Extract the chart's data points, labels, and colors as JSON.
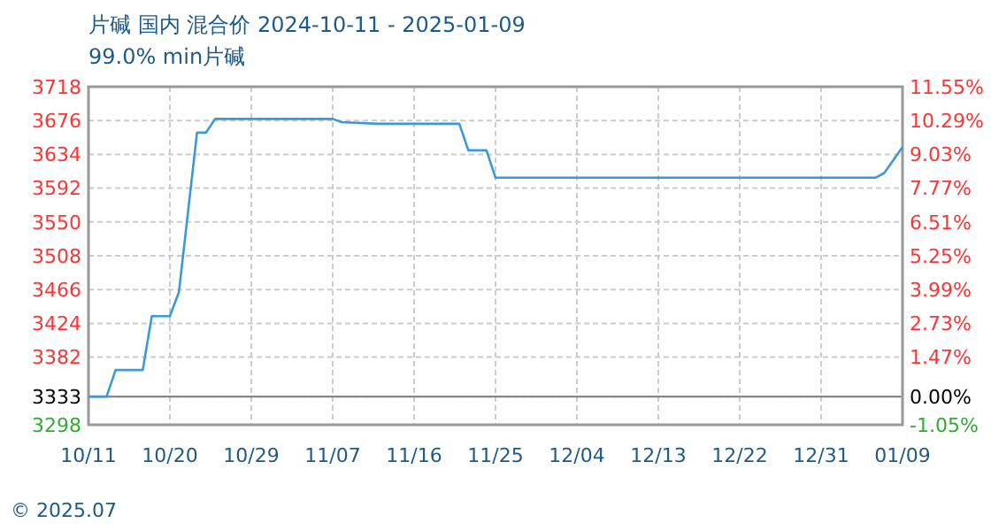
{
  "chart_data": {
    "type": "line",
    "title": "片碱 国内 混合价 2024-10-11 - 2025-01-09",
    "subtitle": "99.0% min片碱",
    "x": [
      "2024-10-11",
      "2024-10-13",
      "2024-10-14",
      "2024-10-17",
      "2024-10-18",
      "2024-10-20",
      "2024-10-21",
      "2024-10-23",
      "2024-10-24",
      "2024-10-25",
      "2024-11-07",
      "2024-11-08",
      "2024-11-12",
      "2024-11-21",
      "2024-11-22",
      "2024-11-24",
      "2024-11-25",
      "2025-01-06",
      "2025-01-07",
      "2025-01-09"
    ],
    "series": [
      {
        "color": "#3a9ad9",
        "values": [
          3333,
          3333,
          3366,
          3366,
          3433,
          3433,
          3463,
          3661,
          3661,
          3678,
          3678,
          3674,
          3672,
          3672,
          3639,
          3639,
          3605,
          3605,
          3611,
          3643
        ]
      }
    ],
    "xlim": [
      "2024-10-11",
      "2025-01-09"
    ],
    "xticks": [
      {
        "value": "2024-10-11",
        "label": "10/11"
      },
      {
        "value": "2024-10-20",
        "label": "10/20"
      },
      {
        "value": "2024-10-29",
        "label": "10/29"
      },
      {
        "value": "2024-11-07",
        "label": "11/07"
      },
      {
        "value": "2024-11-16",
        "label": "11/16"
      },
      {
        "value": "2024-11-25",
        "label": "11/25"
      },
      {
        "value": "2024-12-04",
        "label": "12/04"
      },
      {
        "value": "2024-12-13",
        "label": "12/13"
      },
      {
        "value": "2024-12-22",
        "label": "12/22"
      },
      {
        "value": "2024-12-31",
        "label": "12/31"
      },
      {
        "value": "2025-01-09",
        "label": "01/09"
      }
    ],
    "ylim": [
      3298,
      3718
    ],
    "yticks": [
      3298,
      3333,
      3382,
      3424,
      3466,
      3508,
      3550,
      3592,
      3634,
      3676,
      3718
    ],
    "y2lim": [
      -1.05,
      11.55
    ],
    "y2ticks": [
      {
        "value": -1.05,
        "label": "-1.05%"
      },
      {
        "value": 0,
        "label": "0.00%"
      },
      {
        "value": 1.47,
        "label": "1.47%"
      },
      {
        "value": 2.73,
        "label": "2.73%"
      },
      {
        "value": 3.99,
        "label": "3.99%"
      },
      {
        "value": 5.25,
        "label": "5.25%"
      },
      {
        "value": 6.51,
        "label": "6.51%"
      },
      {
        "value": 7.77,
        "label": "7.77%"
      },
      {
        "value": 9.03,
        "label": "9.03%"
      },
      {
        "value": 10.29,
        "label": "10.29%"
      },
      {
        "value": 11.55,
        "label": "11.55%"
      }
    ],
    "ref_lines": [
      {
        "axis": "y",
        "value": 3333,
        "color": "#888888"
      }
    ],
    "grid": true,
    "marker": "none",
    "line_style": "solid",
    "annotations": [
      "© 2025.07"
    ]
  }
}
